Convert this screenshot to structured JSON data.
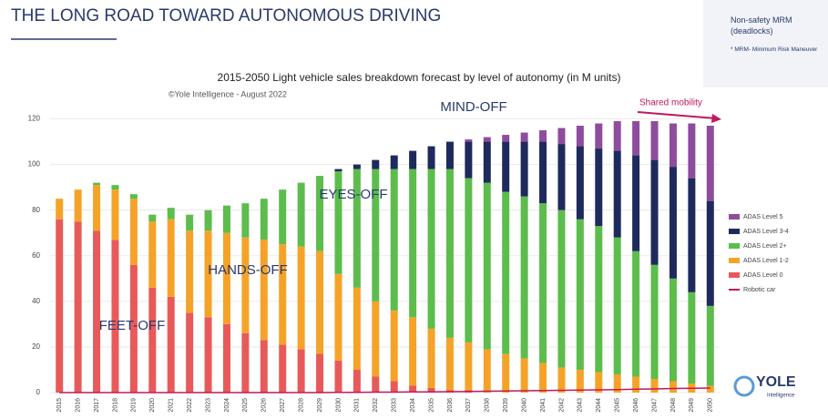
{
  "chart_data": {
    "type": "bar",
    "stacked": true,
    "title": "THE LONG ROAD TOWARD AUTONOMOUS DRIVING",
    "subtitle": "2015-2050 Light vehicle sales breakdown forecast by level of autonomy (in M units)",
    "source": "©Yole Intelligence - August 2022",
    "annotations": [
      "FEET-OFF",
      "HANDS-OFF",
      "EYES-OFF",
      "MIND-OFF",
      "Shared mobility"
    ],
    "note": {
      "title": "Non-safety MRM (deadlocks)",
      "footnote": "* MRM- Minimum Risk Maneuver"
    },
    "logo": {
      "name": "YOLE",
      "sub": "Intelligence"
    },
    "categories": [
      "2015",
      "2016",
      "2017",
      "2018",
      "2019",
      "2020",
      "2021",
      "2022",
      "2023",
      "2024",
      "2025",
      "2026",
      "2027",
      "2028",
      "2029",
      "2030",
      "2031",
      "2032",
      "2033",
      "2034",
      "2035",
      "2036",
      "2037",
      "2038",
      "2039",
      "2040",
      "2041",
      "2042",
      "2043",
      "2044",
      "2045",
      "2046",
      "2047",
      "2048",
      "2049",
      "2050"
    ],
    "series": [
      {
        "name": "ADAS Level 0",
        "color": "#e85a5a",
        "values": [
          76,
          75,
          71,
          67,
          56,
          46,
          42,
          35,
          33,
          30,
          26,
          23,
          21,
          19,
          17,
          14,
          10,
          7,
          5,
          3,
          2,
          1,
          1,
          0,
          0,
          0,
          0,
          0,
          0,
          0,
          0,
          0,
          0,
          0,
          0,
          0
        ]
      },
      {
        "name": "ADAS Level 1-2",
        "color": "#f5a328",
        "values": [
          9,
          14,
          20,
          22,
          29,
          29,
          34,
          36,
          38,
          40,
          42,
          44,
          44,
          45,
          45,
          38,
          36,
          33,
          31,
          30,
          26,
          23,
          21,
          19,
          17,
          15,
          13,
          11,
          10,
          9,
          8,
          7,
          6,
          5,
          4,
          3
        ]
      },
      {
        "name": "ADAS Level 2+",
        "color": "#5cbd4c",
        "values": [
          0,
          0,
          1,
          2,
          2,
          3,
          5,
          7,
          9,
          12,
          15,
          18,
          24,
          28,
          33,
          45,
          52,
          58,
          62,
          65,
          70,
          74,
          72,
          73,
          71,
          71,
          70,
          69,
          66,
          64,
          60,
          55,
          50,
          45,
          40,
          35
        ]
      },
      {
        "name": "ADAS Level 3-4",
        "color": "#1f2a5c",
        "values": [
          0,
          0,
          0,
          0,
          0,
          0,
          0,
          0,
          0,
          0,
          0,
          0,
          0,
          0,
          0,
          1,
          2,
          4,
          6,
          8,
          10,
          12,
          16,
          18,
          22,
          24,
          27,
          29,
          32,
          34,
          38,
          42,
          46,
          49,
          50,
          46
        ]
      },
      {
        "name": "ADAS Level 5",
        "color": "#8e4d9c",
        "values": [
          0,
          0,
          0,
          0,
          0,
          0,
          0,
          0,
          0,
          0,
          0,
          0,
          0,
          0,
          0,
          0,
          0,
          0,
          0,
          0,
          0,
          0,
          1,
          2,
          3,
          4,
          5,
          7,
          9,
          11,
          13,
          15,
          17,
          19,
          24,
          33
        ]
      },
      {
        "name": "Robotic car",
        "color": "#c2185b",
        "type": "line",
        "values": [
          0,
          0,
          0,
          0,
          0,
          0,
          0,
          0,
          0,
          0,
          0,
          0,
          0,
          0,
          0,
          0.1,
          0.1,
          0.2,
          0.2,
          0.3,
          0.3,
          0.4,
          0.5,
          0.6,
          0.7,
          0.8,
          0.9,
          1,
          1.1,
          1.2,
          1.3,
          1.5,
          1.6,
          1.8,
          1.9,
          2
        ]
      }
    ],
    "ylim": [
      0,
      125
    ],
    "yticks": [
      0,
      20,
      40,
      60,
      80,
      100,
      120
    ],
    "grid": true
  }
}
